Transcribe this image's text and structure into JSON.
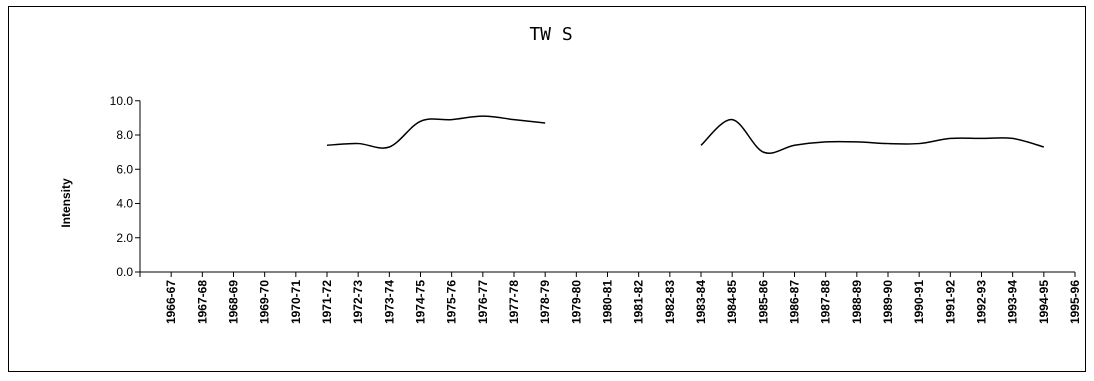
{
  "chart_data": {
    "type": "line",
    "title": "TW S",
    "xlabel": "",
    "ylabel": "Intensity",
    "ylim": [
      0,
      10
    ],
    "y_ticks": [
      "0.0",
      "2.0",
      "4.0",
      "6.0",
      "8.0",
      "10.0"
    ],
    "grid": false,
    "legend": "none",
    "line_color": "#000000",
    "categories": [
      "1966-67",
      "1967-68",
      "1968-69",
      "1969-70",
      "1970-71",
      "1971-72",
      "1972-73",
      "1973-74",
      "1974-75",
      "1975-76",
      "1976-77",
      "1977-78",
      "1978-79",
      "1979-80",
      "1980-81",
      "1981-82",
      "1982-83",
      "1983-84",
      "1984-85",
      "1985-86",
      "1986-87",
      "1987-88",
      "1988-89",
      "1989-90",
      "1990-91",
      "1991-92",
      "1992-93",
      "1993-94",
      "1994-95",
      "1995-96"
    ],
    "series": [
      {
        "values": [
          null,
          null,
          null,
          null,
          null,
          7.4,
          7.5,
          7.3,
          8.8,
          8.9,
          9.1,
          8.9,
          8.7,
          null,
          null,
          null,
          null,
          7.4,
          8.9,
          7.0,
          7.4,
          7.6,
          7.6,
          7.5,
          7.5,
          7.8,
          7.8,
          7.8,
          7.3,
          null
        ]
      }
    ]
  }
}
